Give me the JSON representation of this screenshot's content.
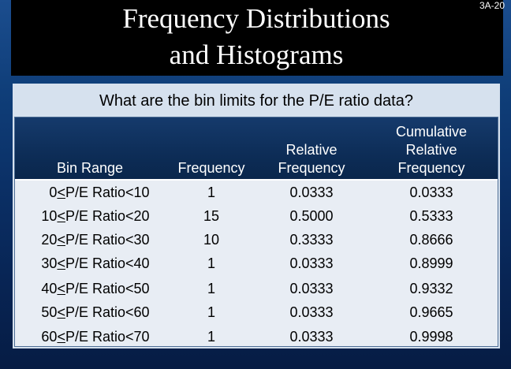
{
  "slide": {
    "title_line1": "Frequency Distributions",
    "title_line2": "and Histograms",
    "number": "3A-20",
    "question": "What are the bin limits for the P/E ratio data?"
  },
  "table": {
    "headers": {
      "bin_range": "Bin Range",
      "frequency": "Frequency",
      "relative_line1": "Relative",
      "relative_line2": "Frequency",
      "cumulative_line1": "Cumulative",
      "cumulative_line2": "Relative",
      "cumulative_line3": "Frequency"
    },
    "rows": [
      {
        "lower": "0",
        "le": "<",
        "label": "P/E Ratio",
        "upper": "<10",
        "frequency": "1",
        "relative": "0.0333",
        "cumulative": "0.0333"
      },
      {
        "lower": "10",
        "le": "<",
        "label": "P/E Ratio",
        "upper": "<20",
        "frequency": "15",
        "relative": "0.5000",
        "cumulative": "0.5333"
      },
      {
        "lower": "20",
        "le": "<",
        "label": "P/E Ratio",
        "upper": "<30",
        "frequency": "10",
        "relative": "0.3333",
        "cumulative": "0.8666"
      },
      {
        "lower": "30",
        "le": "<",
        "label": "P/E Ratio",
        "upper": "<40",
        "frequency": "1",
        "relative": "0.0333",
        "cumulative": "0.8999"
      },
      {
        "lower": "40",
        "le": "<",
        "label": "P/E Ratio",
        "upper": "<50",
        "frequency": "1",
        "relative": "0.0333",
        "cumulative": "0.9332"
      },
      {
        "lower": "50",
        "le": "<",
        "label": "P/E Ratio",
        "upper": "<60",
        "frequency": "1",
        "relative": "0.0333",
        "cumulative": "0.9665"
      },
      {
        "lower": "60",
        "le": "<",
        "label": "P/E Ratio",
        "upper": "<70",
        "frequency": "1",
        "relative": "0.0333",
        "cumulative": "0.9998"
      }
    ]
  }
}
